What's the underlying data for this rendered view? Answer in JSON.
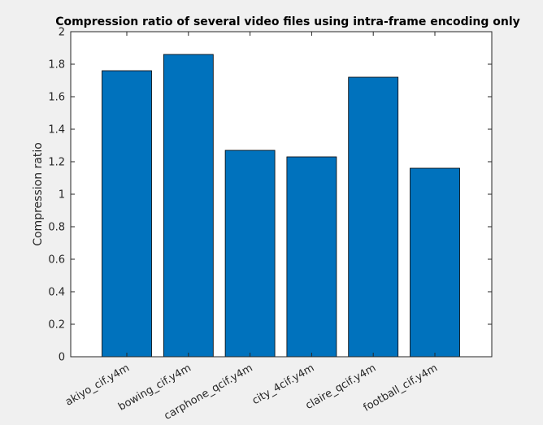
{
  "chart_data": {
    "type": "bar",
    "title": "Compression ratio of several video files using intra-frame encoding only",
    "xlabel": "",
    "ylabel": "Compression ratio",
    "categories": [
      "akiyo_cif.y4m",
      "bowing_cif.y4m",
      "carphone_qcif.y4m",
      "city_4cif.y4m",
      "claire_qcif.y4m",
      "football_cif.y4m"
    ],
    "values": [
      1.76,
      1.86,
      1.27,
      1.23,
      1.72,
      1.16
    ],
    "ylim": [
      0,
      2
    ],
    "yticks": [
      "0",
      "0.2",
      "0.4",
      "0.6",
      "0.8",
      "1",
      "1.2",
      "1.4",
      "1.6",
      "1.8",
      "2"
    ],
    "grid": false,
    "bar_color": "#0072BD",
    "bar_edge_color": "#000000",
    "figure_background": "#f0f0f0",
    "axes_background": "#ffffff"
  }
}
